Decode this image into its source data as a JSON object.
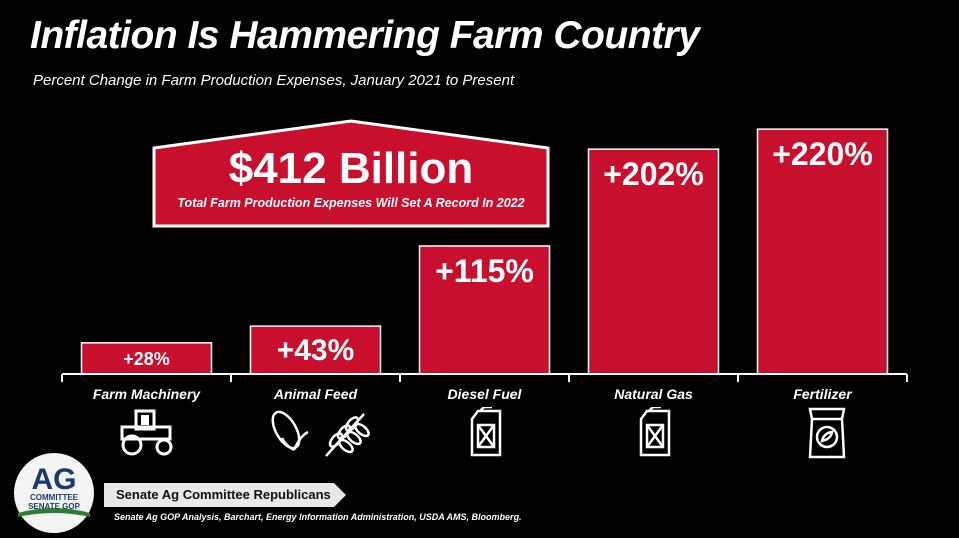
{
  "header": {
    "title": "Inflation Is Hammering Farm Country",
    "subtitle": "Percent Change in Farm Production Expenses, January 2021 to Present"
  },
  "callout": {
    "value": "$412 Billion",
    "text": "Total Farm Production Expenses Will Set A Record In 2022"
  },
  "chart_data": {
    "type": "bar",
    "categories": [
      "Farm Machinery",
      "Animal Feed",
      "Diesel Fuel",
      "Natural Gas",
      "Fertilizer"
    ],
    "values": [
      28,
      43,
      115,
      202,
      220
    ],
    "value_labels": [
      "+28%",
      "+43%",
      "+115%",
      "+202%",
      "+220%"
    ],
    "ylim": [
      0,
      230
    ],
    "grid": false,
    "bar_color": "#c8102e",
    "icons": [
      "tractor-icon",
      "corn-wheat-icon",
      "fuel-can-icon",
      "fuel-can-icon",
      "fertilizer-bag-icon"
    ]
  },
  "footer": {
    "logo_big": "AG",
    "logo_line1": "COMMITTEE",
    "logo_line2": "SENATE GOP",
    "banner": "Senate Ag Committee Republicans",
    "source": "Senate Ag GOP Analysis, Barchart, Energy Information Administration, USDA AMS, Bloomberg."
  },
  "colors": {
    "accent": "#c8102e",
    "background": "#000000",
    "text": "#ffffff"
  }
}
